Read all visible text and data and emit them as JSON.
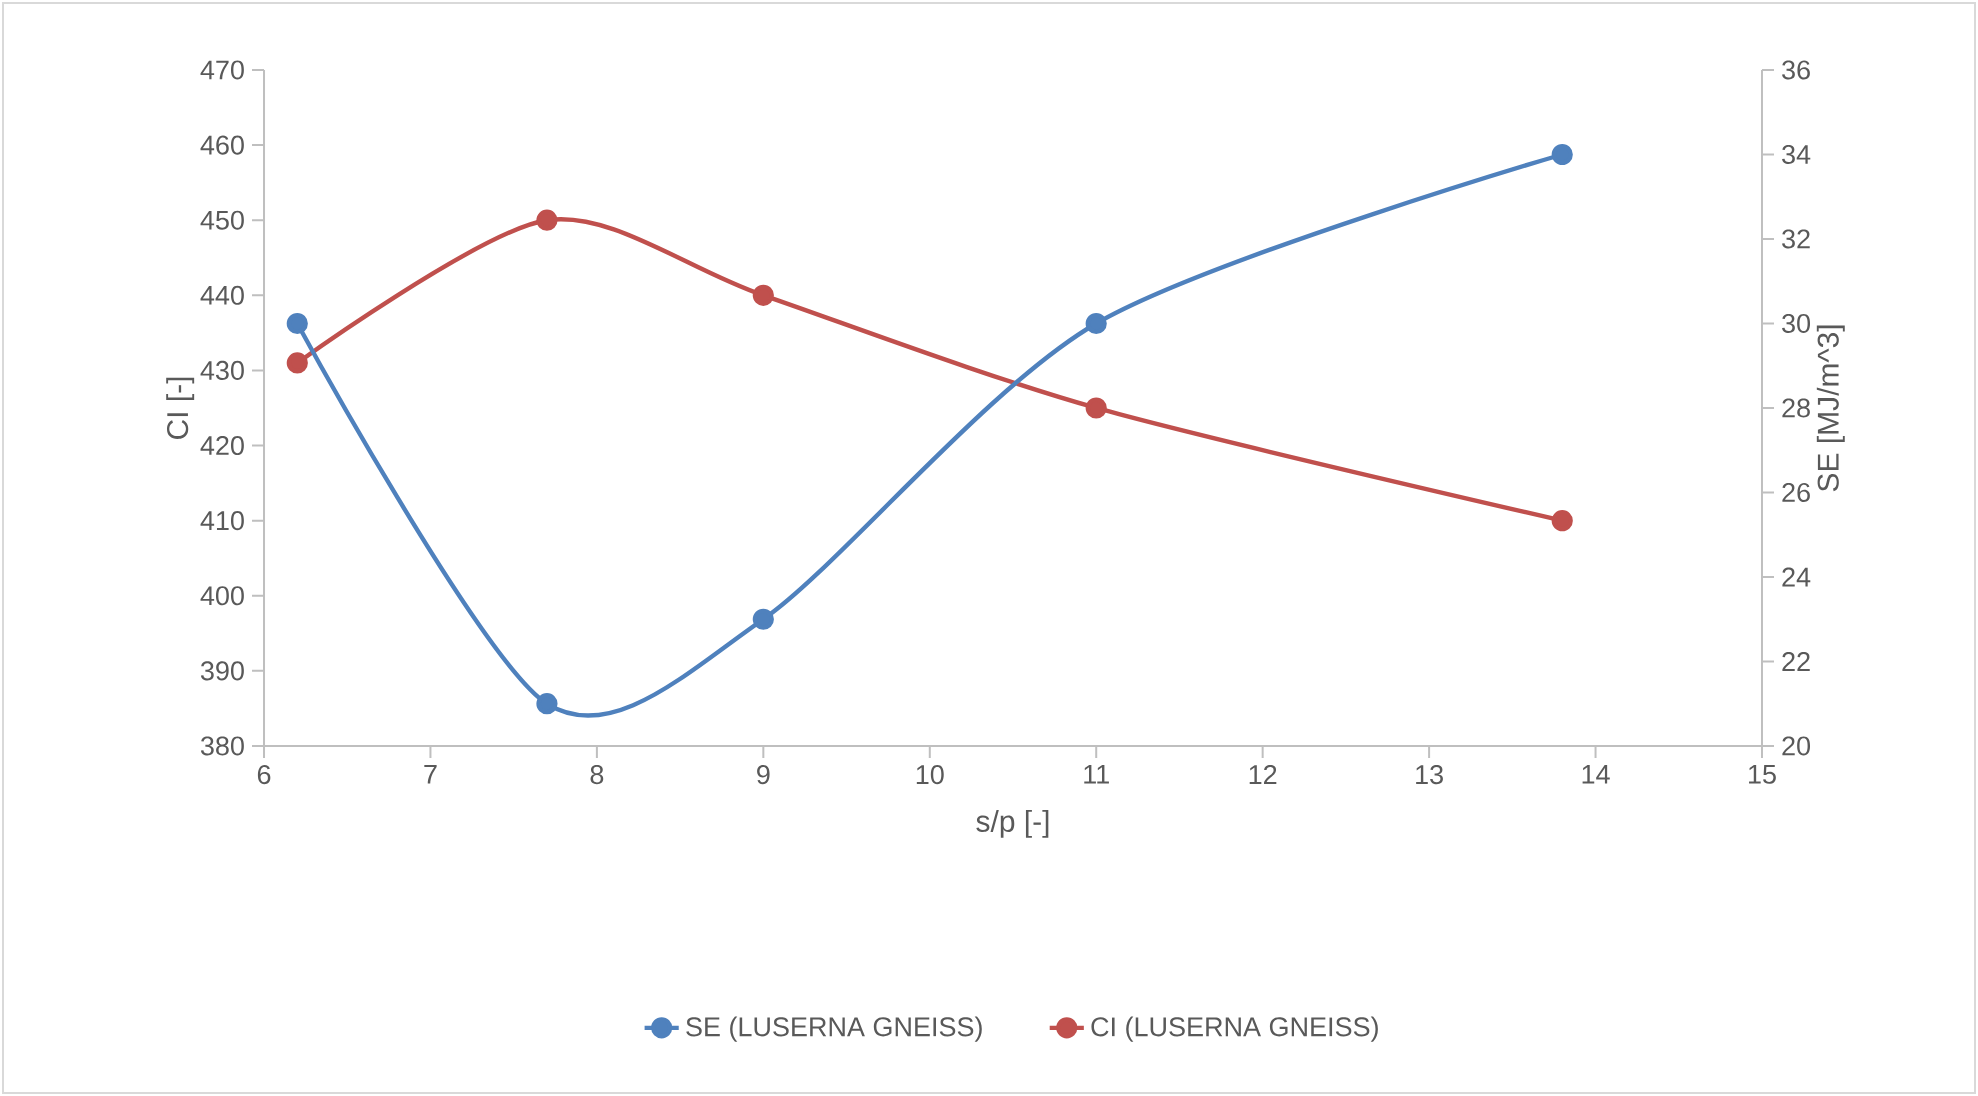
{
  "chart_data": {
    "type": "line",
    "xlabel": "s/p [-]",
    "ylabel": "CI [-]",
    "y2label": "SE [MJ/m^3]",
    "x": [
      6.2,
      7.7,
      9,
      11,
      13.8
    ],
    "series": [
      {
        "name": "SE (LUSERNA GNEISS)",
        "color": "#4f81bd",
        "axis": "y2",
        "values": [
          30,
          21,
          23,
          30,
          34
        ]
      },
      {
        "name": "CI (LUSERNA GNEISS)",
        "color": "#c0504d",
        "values": [
          431,
          450,
          440,
          425,
          410
        ]
      }
    ],
    "xlim": [
      6,
      15
    ],
    "xticks": [
      6,
      7,
      8,
      9,
      10,
      11,
      12,
      13,
      14,
      15
    ],
    "ylim": [
      380,
      470
    ],
    "yticks": [
      380,
      390,
      400,
      410,
      420,
      430,
      440,
      450,
      460,
      470
    ],
    "y2lim": [
      20,
      36
    ],
    "y2ticks": [
      20,
      22,
      24,
      26,
      28,
      30,
      32,
      34,
      36
    ],
    "legend": "bottom",
    "marker": "circle",
    "line_style": "solid",
    "grid": false
  }
}
